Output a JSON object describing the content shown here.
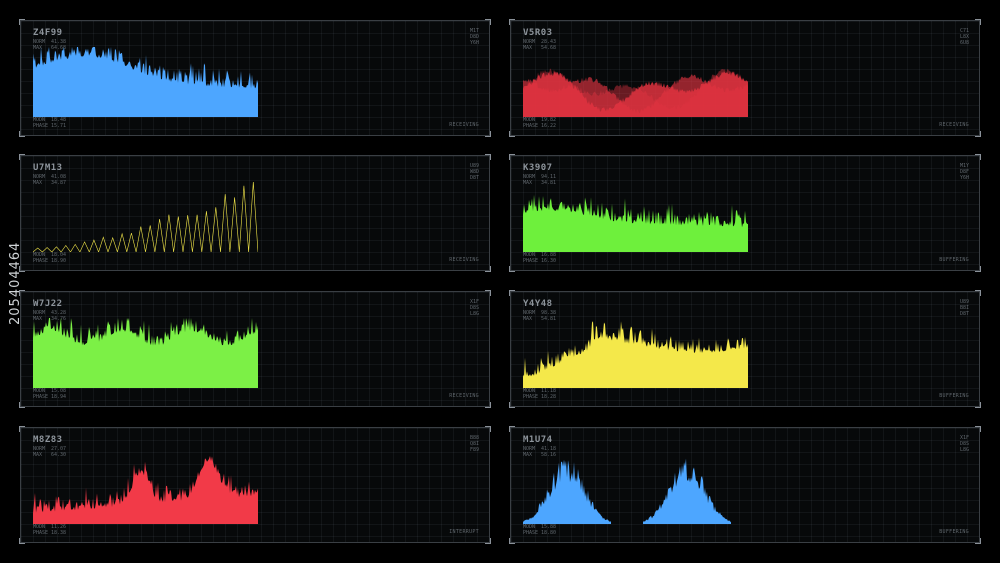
{
  "panels": [
    {
      "id": "Z4F99",
      "meta1": "41.38",
      "meta2": "64.68",
      "codes": [
        "M1T",
        "D8D",
        "Y6H"
      ],
      "foot1": "18.48",
      "foot2": "15.71",
      "status": "RECEIVING",
      "color": "#4da6ff",
      "style": "dense",
      "seed": 3
    },
    {
      "id": "V5R03",
      "meta1": "28.43",
      "meta2": "54.68",
      "codes": [
        "C71",
        "L8X",
        "6U8"
      ],
      "foot1": "19.82",
      "foot2": "16.22",
      "status": "RECEIVING",
      "color": "#e03240",
      "style": "layered",
      "seed": 7
    },
    {
      "id": "U7M13",
      "meta1": "41.08",
      "meta2": "34.87",
      "codes": [
        "U89",
        "W8D",
        "D8T"
      ],
      "foot1": "18.04",
      "foot2": "18.90",
      "status": "RECEIVING",
      "color": "#f4e84a",
      "style": "spikes",
      "seed": 11
    },
    {
      "id": "K3907",
      "meta1": "94.11",
      "meta2": "34.81",
      "codes": [
        "M1Y",
        "D8F",
        "Y6H"
      ],
      "foot1": "16.88",
      "foot2": "16.30",
      "status": "BUFFERING",
      "color": "#6ef03c",
      "style": "flat",
      "seed": 13
    },
    {
      "id": "W7J22",
      "meta1": "43.28",
      "meta2": "34.76",
      "codes": [
        "X1F",
        "D8S",
        "L8G"
      ],
      "foot1": "15.08",
      "foot2": "18.94",
      "status": "RECEIVING",
      "color": "#7cf046",
      "style": "full",
      "seed": 17
    },
    {
      "id": "Y4Y48",
      "meta1": "98.38",
      "meta2": "54.81",
      "codes": [
        "U89",
        "B8I",
        "D8T"
      ],
      "foot1": "11.18",
      "foot2": "18.28",
      "status": "BUFFERING",
      "color": "#f4e84a",
      "style": "ramp",
      "seed": 19
    },
    {
      "id": "M8Z83",
      "meta1": "27.07",
      "meta2": "64.30",
      "codes": [
        "B88",
        "Q8I",
        "F89"
      ],
      "foot1": "11.26",
      "foot2": "18.38",
      "status": "INTERRUPT",
      "color": "#f23a48",
      "style": "peaks",
      "seed": 23
    },
    {
      "id": "M1U74",
      "meta1": "41.18",
      "meta2": "58.16",
      "codes": [
        "X1F",
        "D8S",
        "L8G"
      ],
      "foot1": "15.88",
      "foot2": "18.80",
      "status": "BUFFERING",
      "color": "#4da6ff",
      "style": "bursts",
      "seed": 29
    }
  ],
  "labels": {
    "meta_a": "NORM",
    "meta_b": "MAX",
    "foot_a": "MODN",
    "foot_b": "PHASE"
  },
  "watermark_side": "205404464"
}
